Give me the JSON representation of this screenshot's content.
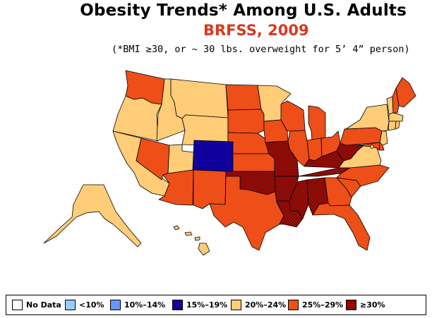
{
  "title": "Obesity Trends*  Among U.S. Adults",
  "subtitle": "BRFSS, 2009",
  "footnote": "(*BMI ≥30, or ~ 30 lbs. overweight for 5’ 4” person)",
  "colors": {
    "no_data": "#ffffff",
    "lt10": "#99ccff",
    "p10_14": "#6699ff",
    "p15_19": "#10009e",
    "p20_24": "#ffcc77",
    "p25_29": "#ee4e18",
    "ge30": "#a50f0a",
    "border": "#000000"
  },
  "legend": [
    {
      "label": "No Data",
      "color": "#ffffff",
      "pattern": false
    },
    {
      "label": "<10%",
      "color": "#99ccff",
      "pattern": false
    },
    {
      "label": "10%–14%",
      "color": "#6699ff",
      "pattern": false
    },
    {
      "label": "15%–19%",
      "color": "#10009e",
      "pattern": false
    },
    {
      "label": "20%–24%",
      "color": "#ffcc77",
      "pattern": false
    },
    {
      "label": "25%–29%",
      "color": "#ee4e18",
      "pattern": false
    },
    {
      "label": "≥30%",
      "color": "#a50f0a",
      "pattern": true
    }
  ],
  "states": {
    "WA": "25-29",
    "OR": "20-24",
    "CA": "20-24",
    "NV": "25-29",
    "ID": "20-24",
    "MT": "20-24",
    "WY": "20-24",
    "UT": "20-24",
    "CO": "15-19",
    "AZ": "25-29",
    "NM": "25-29",
    "ND": "25-29",
    "SD": "25-29",
    "NE": "25-29",
    "KS": "25-29",
    "OK": "≥30",
    "TX": "25-29",
    "MN": "20-24",
    "IA": "25-29",
    "MO": "≥30",
    "AR": "≥30",
    "LA": "≥30",
    "WI": "25-29",
    "IL": "25-29",
    "MI": "25-29",
    "IN": "25-29",
    "OH": "25-29",
    "KY": "≥30",
    "TN": "≥30",
    "MS": "≥30",
    "AL": "≥30",
    "GA": "25-29",
    "FL": "25-29",
    "SC": "25-29",
    "NC": "25-29",
    "VA": "20-24",
    "WV": "≥30",
    "PA": "25-29",
    "NY": "20-24",
    "VT": "20-24",
    "NH": "25-29",
    "ME": "25-29",
    "MA": "20-24",
    "CT": "20-24",
    "RI": "20-24",
    "NJ": "20-24",
    "DE": "25-29",
    "MD": "25-29",
    "DC": "20-24",
    "AK": "20-24",
    "HI": "20-24"
  }
}
